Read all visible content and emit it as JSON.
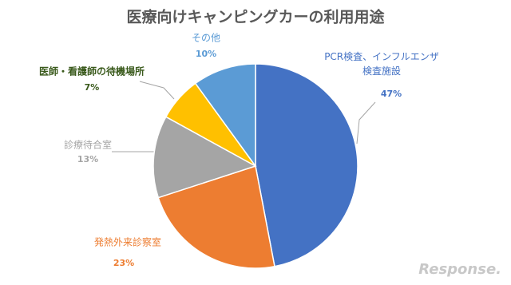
{
  "chart_data": {
    "type": "pie",
    "title": "医療向けキャンピングカーの利用用途",
    "categories": [
      "PCR検査、インフルエンザ\n検査施設",
      "発熱外来診察室",
      "診療待合室",
      "医師・看護師の待機場所",
      "その他"
    ],
    "values": [
      47,
      23,
      13,
      7,
      10
    ],
    "value_labels": [
      "47%",
      "23%",
      "13%",
      "7%",
      "10%"
    ],
    "colors": [
      "#4472c4",
      "#ed7d31",
      "#a5a5a5",
      "#ffc000",
      "#5b9bd5"
    ],
    "label_colors": [
      "#4472c4",
      "#ed7d31",
      "#a5a5a5",
      "#3a5a1c",
      "#5b9bd5"
    ],
    "watermark": "Response."
  }
}
